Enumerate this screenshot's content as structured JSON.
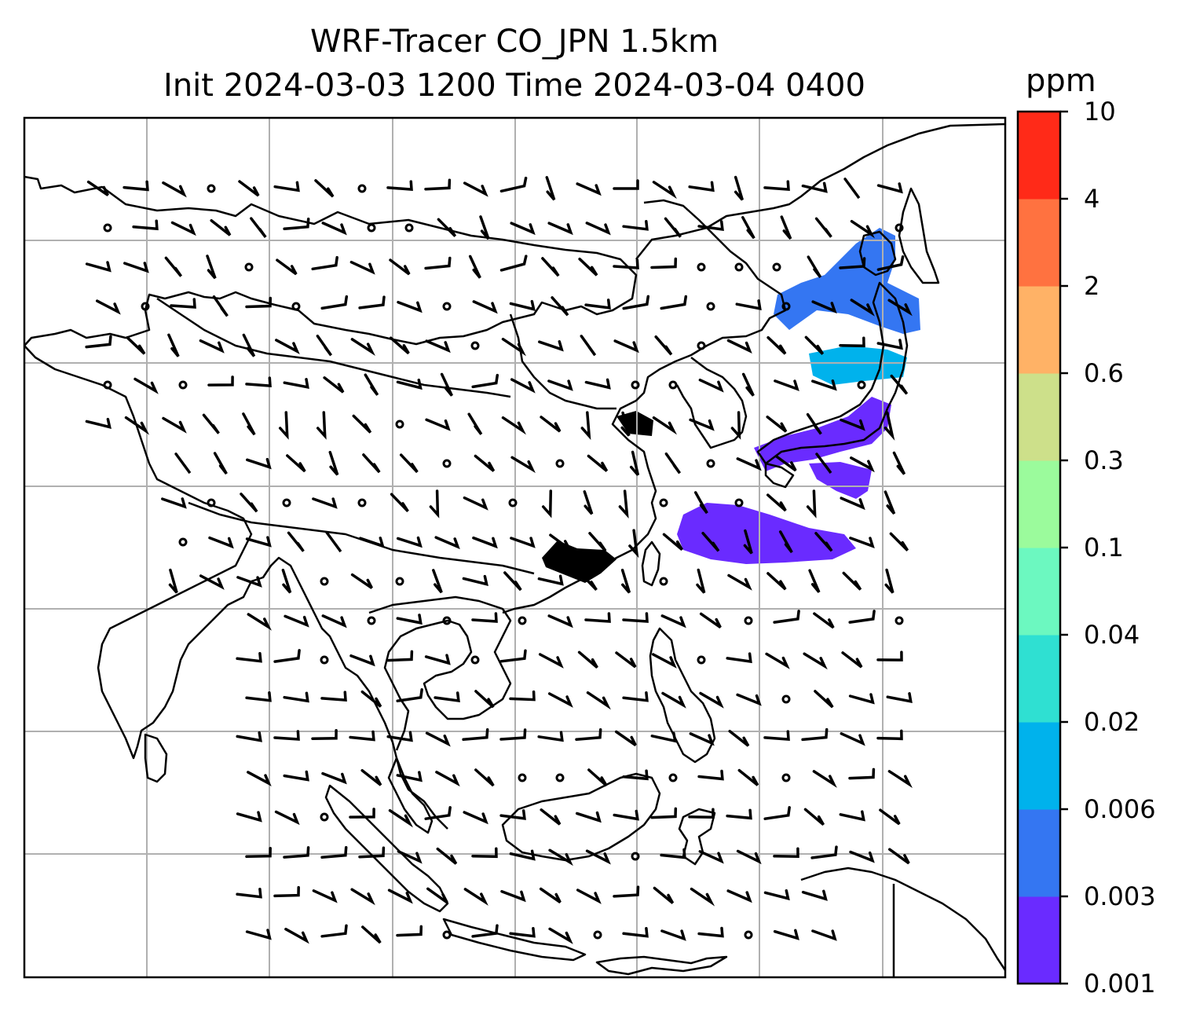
{
  "title": {
    "line1": "WRF-Tracer CO_JPN 1.5km",
    "line2": "Init 2024-03-03 1200 Time 2024-03-04 0400"
  },
  "colorbar": {
    "unit": "ppm",
    "levels": [
      "0.001",
      "0.003",
      "0.006",
      "0.02",
      "0.04",
      "0.1",
      "0.3",
      "0.6",
      "2",
      "4",
      "10"
    ],
    "colors": [
      "#6a2bff",
      "#3476f2",
      "#00b2ec",
      "#2fe0d2",
      "#6cf8c0",
      "#9bfb9c",
      "#cde08a",
      "#ffb266",
      "#ff7240",
      "#ff2a18"
    ]
  },
  "map": {
    "coastline_color": "#000000",
    "gridline_color": "#b0b0b0",
    "tracer_regions": [
      {
        "name": "northern-japan-hokkaido",
        "level": "0.003"
      },
      {
        "name": "honshu-coast",
        "level": "0.006"
      },
      {
        "name": "east-china-sea",
        "level": "0.001"
      },
      {
        "name": "south-china",
        "level": "0.001"
      },
      {
        "name": "north-china-plain",
        "level": "0.001"
      }
    ],
    "wind_barbs_shown": true
  }
}
